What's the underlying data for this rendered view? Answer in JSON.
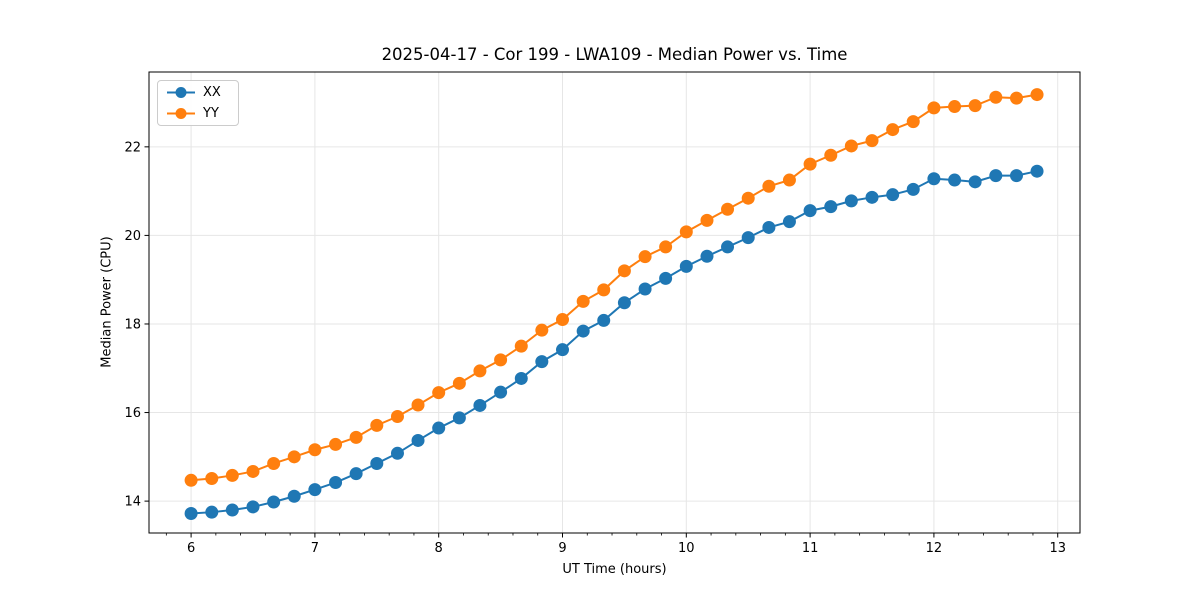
{
  "chart_data": {
    "type": "line",
    "title": "2025-04-17 - Cor 199 - LWA109 - Median Power vs. Time",
    "xlabel": "UT Time (hours)",
    "ylabel": "Median Power (CPU)",
    "xlim": [
      5.66,
      13.18
    ],
    "ylim": [
      13.28,
      23.69
    ],
    "x_ticks": [
      6,
      7,
      8,
      9,
      10,
      11,
      12,
      13
    ],
    "y_ticks": [
      14,
      16,
      18,
      20,
      22
    ],
    "x_minor_tick_step": 0.2,
    "grid": true,
    "grid_color": "#e6e6e6",
    "legend_position": "upper left",
    "x": [
      6.0,
      6.167,
      6.333,
      6.5,
      6.667,
      6.833,
      7.0,
      7.167,
      7.333,
      7.5,
      7.667,
      7.833,
      8.0,
      8.167,
      8.333,
      8.5,
      8.667,
      8.833,
      9.0,
      9.167,
      9.333,
      9.5,
      9.667,
      9.833,
      10.0,
      10.167,
      10.333,
      10.5,
      10.667,
      10.833,
      11.0,
      11.167,
      11.333,
      11.5,
      11.667,
      11.833,
      12.0,
      12.167,
      12.333,
      12.5,
      12.667,
      12.833
    ],
    "series": [
      {
        "name": "XX",
        "color": "#1f77b4",
        "values": [
          13.72,
          13.75,
          13.8,
          13.87,
          13.98,
          14.11,
          14.26,
          14.42,
          14.62,
          14.85,
          15.08,
          15.37,
          15.65,
          15.88,
          16.16,
          16.46,
          16.77,
          17.15,
          17.42,
          17.84,
          18.08,
          18.48,
          18.79,
          19.03,
          19.3,
          19.53,
          19.74,
          19.95,
          20.18,
          20.31,
          20.56,
          20.65,
          20.78,
          20.86,
          20.92,
          21.04,
          21.28,
          21.25,
          21.21,
          21.35,
          21.35,
          21.45
        ]
      },
      {
        "name": "YY",
        "color": "#ff7f0e",
        "values": [
          14.47,
          14.51,
          14.58,
          14.67,
          14.85,
          15.0,
          15.16,
          15.28,
          15.44,
          15.71,
          15.91,
          16.17,
          16.45,
          16.66,
          16.94,
          17.19,
          17.5,
          17.86,
          18.1,
          18.51,
          18.77,
          19.2,
          19.52,
          19.74,
          20.08,
          20.34,
          20.59,
          20.84,
          21.11,
          21.25,
          21.61,
          21.81,
          22.02,
          22.14,
          22.39,
          22.57,
          22.88,
          22.91,
          22.93,
          23.12,
          23.1,
          23.18
        ]
      }
    ]
  }
}
